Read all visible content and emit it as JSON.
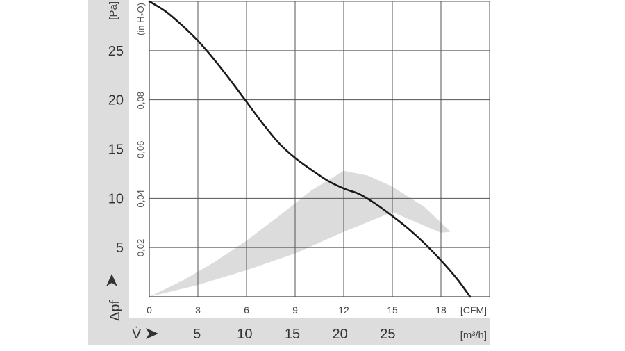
{
  "chart_data": {
    "type": "line",
    "x_cfm": {
      "ticks": [
        0,
        3,
        6,
        9,
        12,
        15,
        18
      ],
      "tick_labels": [
        "0",
        "3",
        "6",
        "9",
        "12",
        "15",
        "18"
      ],
      "unit": "[CFM]",
      "range": [
        0,
        21
      ]
    },
    "x_m3h": {
      "symbol": "V̇",
      "ticks": [
        5,
        10,
        15,
        20,
        25
      ],
      "tick_labels": [
        "5",
        "10",
        "15",
        "20",
        "25"
      ],
      "unit": "[m³/h]"
    },
    "y_pa": {
      "symbol": "Δpf",
      "ticks": [
        5,
        10,
        15,
        20,
        25
      ],
      "tick_labels": [
        "5",
        "10",
        "15",
        "20",
        "25"
      ],
      "unit": "[Pa]",
      "range": [
        0,
        30
      ]
    },
    "y_inh2o": {
      "ticks": [
        0.02,
        0.04,
        0.06,
        0.08
      ],
      "tick_labels": [
        "0,02",
        "0,04",
        "0,06",
        "0,08"
      ],
      "unit": "(in H₂O)"
    },
    "grid": true,
    "curve": {
      "x": [
        0,
        1,
        2,
        3,
        4,
        5,
        6,
        7,
        8,
        9,
        10,
        11,
        12,
        13,
        14,
        15,
        16,
        17,
        18,
        19,
        19.8
      ],
      "y": [
        30.0,
        29.0,
        27.6,
        26.0,
        24.1,
        22.0,
        19.8,
        17.6,
        15.6,
        14.1,
        12.9,
        11.8,
        11.0,
        10.4,
        9.4,
        8.2,
        6.9,
        5.4,
        3.7,
        1.8,
        0
      ]
    },
    "operating_region": {
      "lower_edge": {
        "x": [
          0,
          3,
          6,
          9,
          12,
          15,
          18
        ],
        "y": [
          0,
          1.2,
          2.7,
          4.4,
          6.6,
          8.6,
          6.5
        ]
      },
      "upper_edge": {
        "x": [
          18.6,
          17,
          15,
          13.5,
          12,
          10,
          8,
          6,
          4,
          2,
          0
        ],
        "y": [
          6.6,
          9.1,
          11.2,
          12.3,
          12.8,
          10.8,
          8.2,
          5.7,
          3.5,
          1.6,
          0
        ]
      }
    }
  },
  "colors": {
    "axis_band": "#dddddd",
    "region": "#dcdcdc",
    "curve": "#1a1a1a",
    "grid": "#555555"
  }
}
